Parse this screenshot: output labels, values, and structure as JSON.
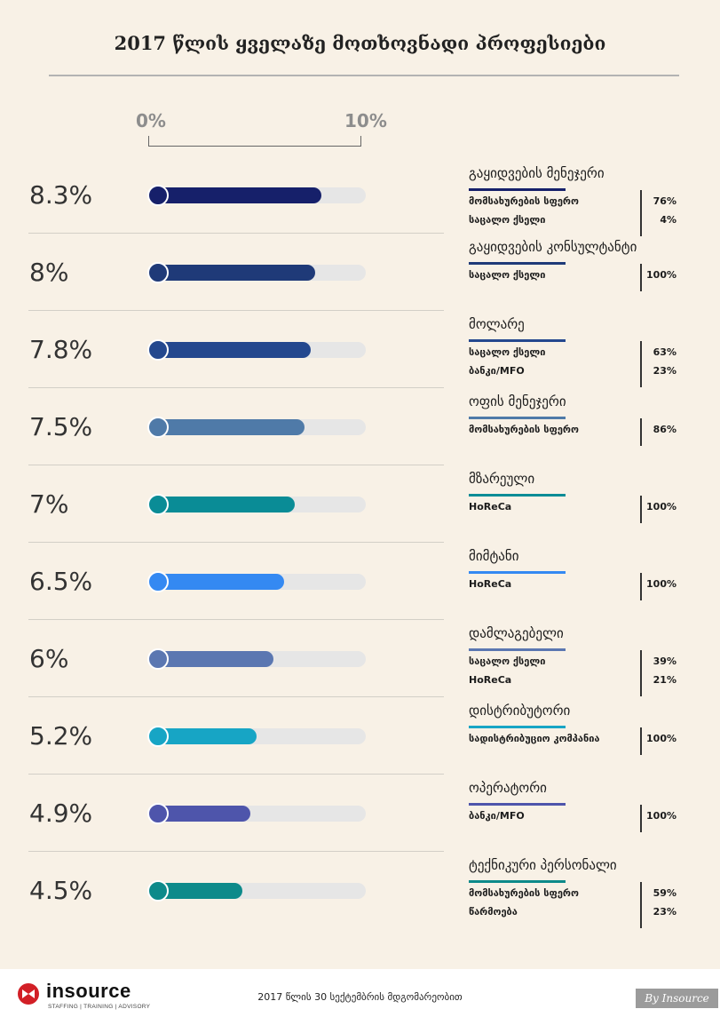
{
  "title": "2017 წლის ყველაზე მოთხოვნადი პროფესიები",
  "scale": {
    "min_label": "0%",
    "max_label": "10%"
  },
  "chart_data": {
    "type": "bar",
    "orientation": "horizontal",
    "title": "2017 წლის ყველაზე მოთხოვნადი პროფესიები",
    "xlim": [
      0,
      10
    ],
    "unit": "%",
    "items": [
      {
        "value": 8.3,
        "value_label": "8.3%",
        "job": "გაყიდვების მენეჯერი",
        "color": "#16206a",
        "sectors": [
          {
            "name": "მომსახურების სფერო",
            "share": "76%"
          },
          {
            "name": "საცალო ქსელი",
            "share": "4%"
          }
        ]
      },
      {
        "value": 8,
        "value_label": "8%",
        "job": "გაყიდვების კონსულტანტი",
        "color": "#1f3a78",
        "sectors": [
          {
            "name": "საცალო ქსელი",
            "share": "100%"
          }
        ]
      },
      {
        "value": 7.8,
        "value_label": "7.8%",
        "job": "მოლარე",
        "color": "#24488e",
        "sectors": [
          {
            "name": "საცალო ქსელი",
            "share": "63%"
          },
          {
            "name": "ბანკი/MFO",
            "share": "23%"
          }
        ]
      },
      {
        "value": 7.5,
        "value_label": "7.5%",
        "job": "ოფის მენეჯერი",
        "color": "#4f7aa8",
        "sectors": [
          {
            "name": "მომსახურების სფერო",
            "share": "86%"
          }
        ]
      },
      {
        "value": 7,
        "value_label": "7%",
        "job": "მზარეული",
        "color": "#0a8c96",
        "sectors": [
          {
            "name": "HoReCa",
            "share": "100%"
          }
        ]
      },
      {
        "value": 6.5,
        "value_label": "6.5%",
        "job": "მიმტანი",
        "color": "#3489f2",
        "sectors": [
          {
            "name": "HoReCa",
            "share": "100%"
          }
        ]
      },
      {
        "value": 6,
        "value_label": "6%",
        "job": "დამლაგებელი",
        "color": "#5b77b1",
        "sectors": [
          {
            "name": "საცალო ქსელი",
            "share": "39%"
          },
          {
            "name": "HoReCa",
            "share": "21%"
          }
        ]
      },
      {
        "value": 5.2,
        "value_label": "5.2%",
        "job": "დისტრიბუტორი",
        "color": "#17a5c5",
        "sectors": [
          {
            "name": "სადისტრიბუციო კომპანია",
            "share": "100%"
          }
        ]
      },
      {
        "value": 4.9,
        "value_label": "4.9%",
        "job": "ოპერატორი",
        "color": "#4e55ab",
        "sectors": [
          {
            "name": "ბანკი/MFO",
            "share": "100%"
          }
        ]
      },
      {
        "value": 4.5,
        "value_label": "4.5%",
        "job": "ტექნიკური პერსონალი",
        "color": "#0d8a8a",
        "sectors": [
          {
            "name": "მომსახურების სფერო",
            "share": "59%"
          },
          {
            "name": "წარმოება",
            "share": "23%"
          }
        ]
      }
    ]
  },
  "footer": {
    "logo_name": "insource",
    "logo_tagline": "STAFFING | TRAINING | ADVISORY",
    "note": "2017 წლის 30 სექტემბრის მდგომარეობით",
    "credit": "By Insource"
  }
}
